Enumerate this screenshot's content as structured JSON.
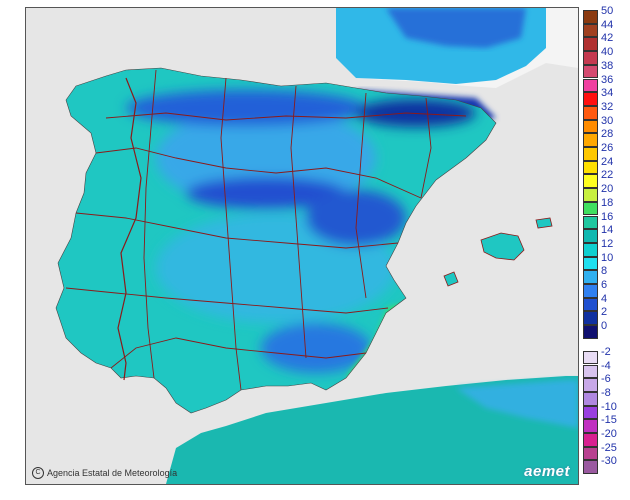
{
  "credit": {
    "text": "Agencia Estatal de Meteorología",
    "icon": "copyright-icon"
  },
  "logo": {
    "text": "aemet"
  },
  "colors": {
    "sea": "#e6e6e6",
    "land_low": "#1fc7c2",
    "land_mid": "#18b4b9",
    "cold_light": "#38a8e8",
    "cold": "#2060d8",
    "cold_deep": "#1030a0",
    "warm": "#3ee85a",
    "border": "#8b1a1a",
    "france": "#f2f2f2",
    "africa": "#1ab8b0"
  },
  "legend": {
    "positive": [
      {
        "label": "50",
        "color": "#8b3a10"
      },
      {
        "label": "44",
        "color": "#a04020"
      },
      {
        "label": "42",
        "color": "#b03030"
      },
      {
        "label": "40",
        "color": "#c43a50"
      },
      {
        "label": "38",
        "color": "#d44a70"
      },
      {
        "label": "36",
        "color": "#f040a0"
      },
      {
        "label": "34",
        "color": "#ff1010"
      },
      {
        "label": "32",
        "color": "#ff5a10"
      },
      {
        "label": "30",
        "color": "#ff8c00"
      },
      {
        "label": "28",
        "color": "#ffa800"
      },
      {
        "label": "26",
        "color": "#ffc800"
      },
      {
        "label": "24",
        "color": "#ffe000"
      },
      {
        "label": "22",
        "color": "#ffff20"
      },
      {
        "label": "20",
        "color": "#c8f040"
      },
      {
        "label": "18",
        "color": "#40e060"
      },
      {
        "label": "16",
        "color": "#20c8a0"
      },
      {
        "label": "14",
        "color": "#10b8b0"
      },
      {
        "label": "12",
        "color": "#10d0d0"
      },
      {
        "label": "10",
        "color": "#20e0f0"
      },
      {
        "label": "8",
        "color": "#30b0f0"
      },
      {
        "label": "6",
        "color": "#3080f0"
      },
      {
        "label": "4",
        "color": "#2050d0"
      },
      {
        "label": "2",
        "color": "#1030a0"
      },
      {
        "label": "0",
        "color": "#101070"
      }
    ],
    "negative": [
      {
        "label": "-2",
        "color": "#e8dcf4"
      },
      {
        "label": "-4",
        "color": "#d8c4ee"
      },
      {
        "label": "-6",
        "color": "#c8a8e8"
      },
      {
        "label": "-8",
        "color": "#b088e0"
      },
      {
        "label": "-10",
        "color": "#9a40e0"
      },
      {
        "label": "-15",
        "color": "#c030c0"
      },
      {
        "label": "-20",
        "color": "#d82090"
      },
      {
        "label": "-25",
        "color": "#b84090"
      },
      {
        "label": "-30",
        "color": "#9a5aa0"
      }
    ]
  }
}
